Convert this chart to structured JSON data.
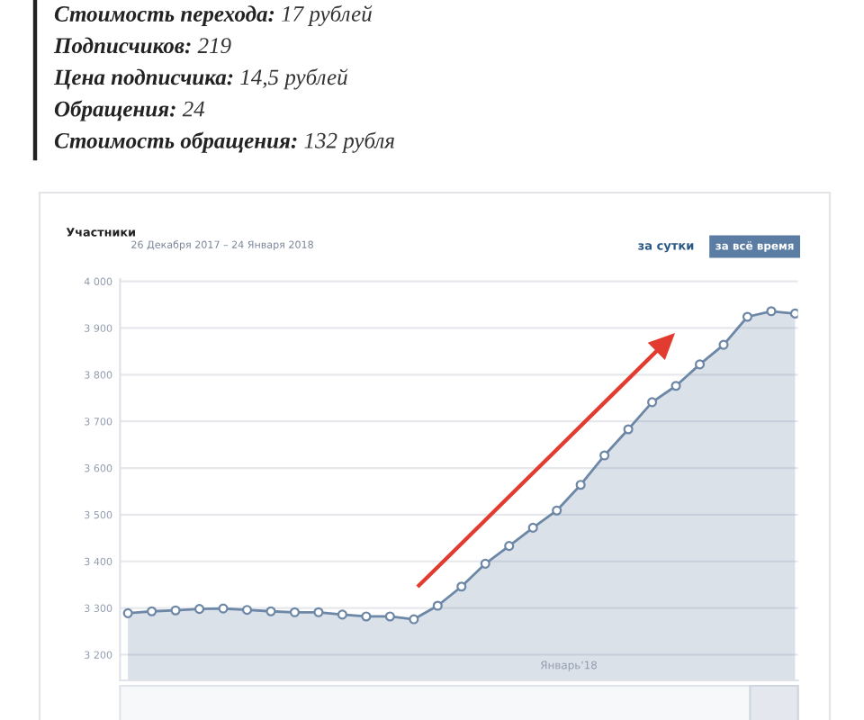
{
  "chart_data": {
    "type": "area",
    "title": "Участники",
    "subtitle": "26 Декабря 2017 – 24 Января 2018",
    "annotations": [
      "Стоимость перехода:",
      "17 рублей",
      "Подписчиков:",
      "219",
      "Цена подписчика:",
      "14,5 рублей",
      "Обращения:",
      "24",
      "Стоимость обращения:",
      "132 рубля",
      "за сутки",
      "за всё время",
      "Январь'18"
    ],
    "categories": [
      null,
      null,
      null,
      null,
      null,
      null,
      null,
      null,
      null,
      null,
      null,
      null,
      null,
      null,
      null,
      null,
      null,
      null,
      null,
      null,
      null,
      null,
      null,
      null,
      null,
      null,
      null,
      null,
      null
    ],
    "series": [
      {
        "color": "#6d87a6",
        "values": [
          3289,
          3293,
          3295,
          3298,
          3299,
          3296,
          3293,
          3291,
          3291,
          3286,
          3282,
          3282,
          3276,
          3305,
          3346,
          3395,
          3433,
          3472,
          3509,
          3564,
          3627,
          3683,
          3741,
          3776,
          3822,
          3864,
          3924,
          3936,
          3931
        ]
      }
    ],
    "ylim": [
      3145,
      4005
    ],
    "yticks": [
      {
        "value": 3200,
        "label": "3 200"
      },
      {
        "value": 3300,
        "label": "3 300"
      },
      {
        "value": 3400,
        "label": "3 400"
      },
      {
        "value": 3500,
        "label": "3 500"
      },
      {
        "value": 3600,
        "label": "3 600"
      },
      {
        "value": 3700,
        "label": "3 700"
      },
      {
        "value": 3800,
        "label": "3 800"
      },
      {
        "value": 3900,
        "label": "3 900"
      },
      {
        "value": 4000,
        "label": "4 000"
      }
    ],
    "tick_labels": "y",
    "grid": "y",
    "marker": "circle",
    "line_style": "solid"
  }
}
